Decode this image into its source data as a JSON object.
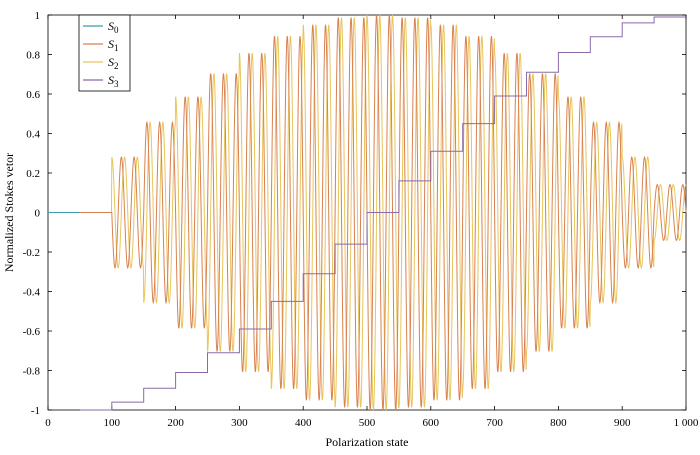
{
  "chart_data": {
    "type": "line",
    "xlabel": "Polarization state",
    "ylabel": "Normalized Stokes vetor",
    "xlim": [
      0,
      1000
    ],
    "ylim": [
      -1,
      1
    ],
    "x_ticks": [
      0,
      100,
      200,
      300,
      400,
      500,
      600,
      700,
      800,
      900,
      1000
    ],
    "x_tick_labels": [
      "0",
      "100",
      "200",
      "300",
      "400",
      "500",
      "600",
      "700",
      "800",
      "900",
      "1 000"
    ],
    "y_ticks": [
      1,
      0.8,
      0.6,
      0.4,
      0.2,
      0,
      -0.2,
      -0.4,
      -0.6,
      -0.8,
      -1
    ],
    "y_tick_labels": [
      "1",
      "0.8",
      "0.6",
      "0.4",
      "0.2",
      "0",
      "-0.2",
      "-0.4",
      "-0.6",
      "-0.8",
      "-1"
    ],
    "grid": false,
    "legend_position": "top-left",
    "start_x": 50,
    "step_x": 50,
    "step_levels": [
      -1,
      -0.96,
      -0.89,
      -0.81,
      -0.71,
      -0.59,
      -0.45,
      -0.31,
      -0.16,
      0,
      0.16,
      0.31,
      0.45,
      0.59,
      0.71,
      0.81,
      0.89,
      0.96,
      0.99
    ],
    "oscillation_period": 20,
    "series": [
      {
        "name": "S",
        "sub": "0",
        "color": "#3a9ca8"
      },
      {
        "name": "S",
        "sub": "1",
        "color": "#d9814f"
      },
      {
        "name": "S",
        "sub": "2",
        "color": "#e9c55a"
      },
      {
        "name": "S",
        "sub": "3",
        "color": "#8a6aa8"
      }
    ]
  }
}
